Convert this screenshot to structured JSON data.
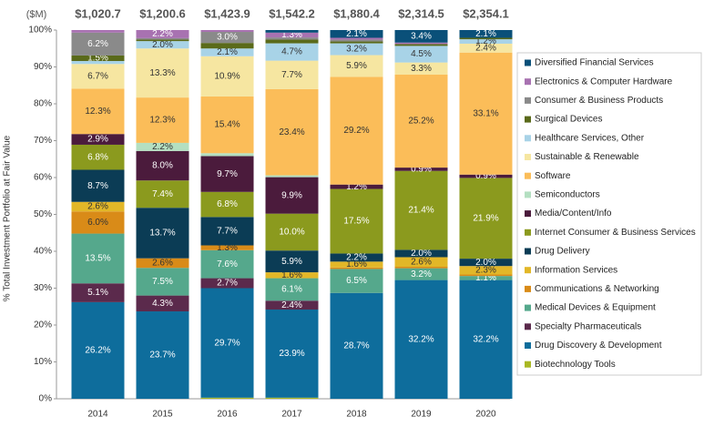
{
  "chart_data": {
    "type": "stacked_bar_100",
    "y_label": "% Total Investment Portfolio at Fair Value",
    "total_unit": "($M)",
    "total_labels": [
      "$1,020.7",
      "$1,200.6",
      "$1,423.9",
      "$1,542.2",
      "$1,880.4",
      "$2,314.5",
      "$2,354.1"
    ],
    "categories": [
      "2014",
      "2015",
      "2016",
      "2017",
      "2018",
      "2019",
      "2020"
    ],
    "ylim": [
      0,
      100
    ],
    "yticks": [
      {
        "value": 0,
        "label": "0%"
      },
      {
        "value": 10,
        "label": "10%"
      },
      {
        "value": 20,
        "label": "20%"
      },
      {
        "value": 30,
        "label": "30%"
      },
      {
        "value": 40,
        "label": "40%"
      },
      {
        "value": 50,
        "label": "50%"
      },
      {
        "value": 60,
        "label": "60%"
      },
      {
        "value": 70,
        "label": "70%"
      },
      {
        "value": 80,
        "label": "80%"
      },
      {
        "value": 90,
        "label": "90%"
      },
      {
        "value": 100,
        "label": "100%"
      }
    ],
    "grid": false,
    "legend": "right",
    "series": [
      {
        "name": "Biotechnology Tools",
        "color": "#a9b823",
        "values": [
          0,
          0,
          0.3,
          0.3,
          0,
          0,
          0
        ],
        "value_labels": [
          null,
          null,
          null,
          null,
          null,
          null,
          null
        ]
      },
      {
        "name": "Drug Discovery & Development",
        "color": "#0e6d9c",
        "values": [
          26.2,
          23.7,
          29.7,
          23.9,
          28.7,
          32.2,
          32.2
        ],
        "value_labels": [
          "26.2%",
          "23.7%",
          "29.7%",
          "23.9%",
          "28.7%",
          "32.2%",
          "32.2%"
        ]
      },
      {
        "name": "Specialty Pharmaceuticals",
        "color": "#5b2a4c",
        "values": [
          5.1,
          4.3,
          2.7,
          2.4,
          0,
          0,
          0
        ],
        "value_labels": [
          "5.1%",
          "4.3%",
          "2.7%",
          "2.4%",
          null,
          null,
          null
        ]
      },
      {
        "name": "Medical Devices & Equipment",
        "color": "#55a88c",
        "values": [
          13.5,
          7.5,
          7.6,
          6.1,
          6.5,
          3.2,
          1.1
        ],
        "value_labels": [
          "13.5%",
          "7.5%",
          "7.6%",
          "6.1%",
          "6.5%",
          "3.2%",
          "1.1%"
        ]
      },
      {
        "name": "Communications & Networking",
        "color": "#d98b18",
        "values": [
          6.0,
          2.6,
          1.3,
          0,
          0.4,
          0.4,
          0.4
        ],
        "value_labels": [
          "6.0%",
          "2.6%",
          "1.3%",
          null,
          null,
          null,
          null
        ]
      },
      {
        "name": "Information Services",
        "color": "#e2b728",
        "values": [
          2.6,
          0,
          0,
          1.6,
          1.6,
          2.6,
          2.3
        ],
        "value_labels": [
          "2.6%",
          null,
          null,
          "1.6%",
          "1.6%",
          "2.6%",
          "2.3%"
        ]
      },
      {
        "name": "Drug Delivery",
        "color": "#0b3c55",
        "values": [
          8.7,
          13.7,
          7.7,
          5.9,
          2.2,
          2.0,
          2.0
        ],
        "value_labels": [
          "8.7%",
          "13.7%",
          "7.7%",
          "5.9%",
          "2.2%",
          "2.0%",
          "2.0%"
        ]
      },
      {
        "name": "Internet Consumer & Business Services",
        "color": "#8b9a1e",
        "values": [
          6.8,
          7.4,
          6.8,
          10.0,
          17.5,
          21.4,
          21.9
        ],
        "value_labels": [
          "6.8%",
          "7.4%",
          "6.8%",
          "10.0%",
          "17.5%",
          "21.4%",
          "21.9%"
        ]
      },
      {
        "name": "Media/Content/Info",
        "color": "#4b1b3c",
        "values": [
          2.9,
          8.0,
          9.7,
          9.9,
          1.2,
          0.9,
          0.9
        ],
        "value_labels": [
          "2.9%",
          "8.0%",
          "9.7%",
          "9.9%",
          "1.2%",
          "0.9%",
          "0.9%"
        ]
      },
      {
        "name": "Semiconductors",
        "color": "#b4dfc1",
        "values": [
          0,
          2.2,
          0.8,
          0.5,
          0,
          0,
          0
        ],
        "value_labels": [
          null,
          "2.2%",
          null,
          null,
          null,
          null,
          null
        ]
      },
      {
        "name": "Software",
        "color": "#fbbd59",
        "values": [
          12.3,
          12.3,
          15.4,
          23.4,
          29.2,
          25.2,
          33.1
        ],
        "value_labels": [
          "12.3%",
          "12.3%",
          "15.4%",
          "23.4%",
          "29.2%",
          "25.2%",
          "33.1%"
        ]
      },
      {
        "name": "Sustainable & Renewable",
        "color": "#f6e6a1",
        "values": [
          6.7,
          13.3,
          10.9,
          7.7,
          5.9,
          3.3,
          2.4
        ],
        "value_labels": [
          "6.7%",
          "13.3%",
          "10.9%",
          "7.7%",
          "5.9%",
          "3.3%",
          "2.4%"
        ]
      },
      {
        "name": "Healthcare Services, Other",
        "color": "#a8d3e7",
        "values": [
          0.8,
          2.0,
          2.1,
          4.7,
          3.2,
          4.5,
          1.2
        ],
        "value_labels": [
          null,
          "2.0%",
          "2.1%",
          "4.7%",
          "3.2%",
          "4.5%",
          "1.2%"
        ]
      },
      {
        "name": "Surgical Devices",
        "color": "#5a6a1a",
        "values": [
          1.5,
          0.4,
          1.5,
          1.0,
          0.5,
          0.5,
          0.4
        ],
        "value_labels": [
          "1.5%",
          null,
          null,
          null,
          null,
          null,
          null
        ]
      },
      {
        "name": "Consumer & Business Products",
        "color": "#8a8a8a",
        "values": [
          6.2,
          0.4,
          3.0,
          0.6,
          0.5,
          0,
          0
        ],
        "value_labels": [
          "6.2%",
          null,
          "3.0%",
          null,
          null,
          null,
          null
        ]
      },
      {
        "name": "Electronics & Computer Hardware",
        "color": "#a872b1",
        "values": [
          0.7,
          2.2,
          0.5,
          1.3,
          0.5,
          0.4,
          0
        ],
        "value_labels": [
          null,
          "2.2%",
          null,
          "1.3%",
          null,
          null,
          null
        ]
      },
      {
        "name": "Diversified Financial Services",
        "color": "#0a5079",
        "values": [
          0,
          0,
          0,
          0.7,
          2.1,
          3.4,
          2.1
        ],
        "value_labels": [
          null,
          null,
          null,
          null,
          "2.1%",
          "3.4%",
          "2.1%"
        ]
      }
    ]
  }
}
